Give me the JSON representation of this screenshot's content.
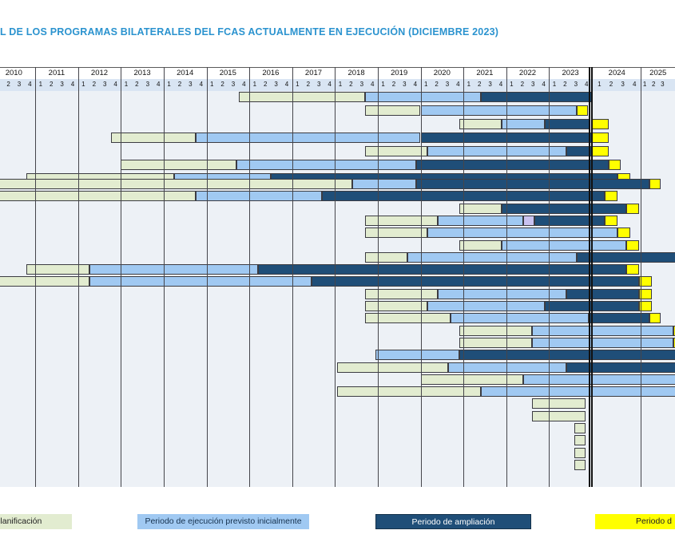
{
  "title": "L DE LOS PROGRAMAS BILATERALES DEL FCAS ACTUALMENTE EN EJECUCIÓN (DICIEMBRE 2023)",
  "title_color": "#2b93cf",
  "colors": {
    "plan": "#e2ecd0",
    "ejecucion": "#a0c9f2",
    "ampliacion": "#1f4e78",
    "extra": "#ffff00",
    "otros": "#c9c2f0",
    "header_quarters_bg": "#d9e5f3",
    "plot_bg": "#edf1f6",
    "grid_line": "#45454b",
    "today_line": "#101010"
  },
  "timeline": {
    "years": [
      {
        "label": "2010",
        "quarters": [
          "1",
          "2",
          "3",
          "4"
        ]
      },
      {
        "label": "2011",
        "quarters": [
          "1",
          "2",
          "3",
          "4"
        ]
      },
      {
        "label": "2012",
        "quarters": [
          "1",
          "2",
          "3",
          "4"
        ]
      },
      {
        "label": "2013",
        "quarters": [
          "1",
          "2",
          "3",
          "4"
        ]
      },
      {
        "label": "2014",
        "quarters": [
          "1",
          "2",
          "3",
          "4"
        ]
      },
      {
        "label": "2015",
        "quarters": [
          "1",
          "2",
          "3",
          "4"
        ]
      },
      {
        "label": "2016",
        "quarters": [
          "1",
          "2",
          "3",
          "4"
        ]
      },
      {
        "label": "2017",
        "quarters": [
          "1",
          "2",
          "3",
          "4"
        ]
      },
      {
        "label": "2018",
        "quarters": [
          "1",
          "2",
          "3",
          "4"
        ]
      },
      {
        "label": "2019",
        "quarters": [
          "1",
          "2",
          "3",
          "4"
        ]
      },
      {
        "label": "2020",
        "quarters": [
          "1",
          "2",
          "3",
          "4"
        ]
      },
      {
        "label": "2021",
        "quarters": [
          "1",
          "2",
          "3",
          "4"
        ]
      },
      {
        "label": "2022",
        "quarters": [
          "1",
          "2",
          "3",
          "4"
        ]
      },
      {
        "label": "2023",
        "quarters": [
          "1",
          "2",
          "3",
          "4"
        ]
      },
      {
        "label": "2024",
        "quarters": [
          "1",
          "2",
          "3",
          "4"
        ]
      },
      {
        "label": "2025",
        "quarters": [
          "1",
          "2",
          "3"
        ]
      }
    ],
    "today_marker": "end of 2023 Q4"
  },
  "legend": [
    {
      "key": "plan",
      "label": "n y planificación",
      "text_color": "#222222"
    },
    {
      "key": "ejecucion",
      "label": "Periodo de ejecución previsto inicialmente",
      "text_color": "#16324f"
    },
    {
      "key": "ampliacion",
      "label": "Periodo de ampliación",
      "text_color": "#ffffff"
    },
    {
      "key": "extra",
      "label": "Periodo d",
      "text_color": "#222222"
    }
  ],
  "chart_data": {
    "type": "gantt",
    "x_axis": {
      "unit": "decimal-year",
      "visible_start": 2010.18,
      "visible_end": 2025.94,
      "grid": "vertical year lines"
    },
    "segment_types": {
      "plan": "Periodo de formulación y planificación (verde)",
      "ejecucion": "Periodo de ejecución previsto inicialmente (azul claro)",
      "ampliacion": "Periodo de ampliación (azul oscuro)",
      "extra": "Periodo de prórroga (amarillo)",
      "otros": "Periodo especial (lavanda)"
    },
    "rows": [
      {
        "segments": [
          {
            "type": "plan",
            "start": 2015.75,
            "end": 2018.7
          },
          {
            "type": "ejecucion",
            "start": 2018.7,
            "end": 2021.4
          },
          {
            "type": "ampliacion",
            "start": 2021.4,
            "end": 2024.0
          }
        ]
      },
      {
        "segments": [
          {
            "type": "plan",
            "start": 2018.7,
            "end": 2020.0
          },
          {
            "type": "ejecucion",
            "start": 2020.0,
            "end": 2023.65
          },
          {
            "type": "extra",
            "start": 2023.65,
            "end": 2023.9
          }
        ]
      },
      {
        "segments": [
          {
            "type": "plan",
            "start": 2020.9,
            "end": 2021.9
          },
          {
            "type": "ejecucion",
            "start": 2021.9,
            "end": 2022.9
          },
          {
            "type": "ampliacion",
            "start": 2022.9,
            "end": 2023.95
          },
          {
            "type": "extra",
            "start": 2024.0,
            "end": 2024.4
          }
        ]
      },
      {
        "segments": [
          {
            "type": "plan",
            "start": 2012.77,
            "end": 2014.75
          },
          {
            "type": "ejecucion",
            "start": 2014.75,
            "end": 2020.0
          },
          {
            "type": "ampliacion",
            "start": 2020.0,
            "end": 2024.0
          },
          {
            "type": "extra",
            "start": 2024.0,
            "end": 2024.4
          }
        ]
      },
      {
        "segments": [
          {
            "type": "plan",
            "start": 2018.7,
            "end": 2020.15
          },
          {
            "type": "ejecucion",
            "start": 2020.15,
            "end": 2023.4
          },
          {
            "type": "ampliacion",
            "start": 2023.4,
            "end": 2024.0
          },
          {
            "type": "extra",
            "start": 2024.0,
            "end": 2024.4
          }
        ]
      },
      {
        "segments": [
          {
            "type": "plan",
            "start": 2013.0,
            "end": 2015.7
          },
          {
            "type": "ejecucion",
            "start": 2015.7,
            "end": 2019.9
          },
          {
            "type": "ampliacion",
            "start": 2019.9,
            "end": 2024.4
          },
          {
            "type": "extra",
            "start": 2024.4,
            "end": 2024.67
          }
        ]
      },
      {
        "segments": [
          {
            "type": "plan",
            "start": 2010.8,
            "end": 2014.25
          },
          {
            "type": "ejecucion",
            "start": 2014.25,
            "end": 2016.5
          },
          {
            "type": "ampliacion",
            "start": 2016.5,
            "end": 2024.6
          },
          {
            "type": "extra",
            "start": 2024.6,
            "end": 2024.9
          }
        ]
      },
      {
        "segments": [
          {
            "type": "plan",
            "start": 2009.8,
            "end": 2018.4
          },
          {
            "type": "ejecucion",
            "start": 2018.4,
            "end": 2019.9
          },
          {
            "type": "ampliacion",
            "start": 2019.9,
            "end": 2025.34
          },
          {
            "type": "extra",
            "start": 2025.34,
            "end": 2025.6
          }
        ]
      },
      {
        "segments": [
          {
            "type": "plan",
            "start": 2009.8,
            "end": 2014.75
          },
          {
            "type": "ejecucion",
            "start": 2014.75,
            "end": 2017.7
          },
          {
            "type": "ampliacion",
            "start": 2017.7,
            "end": 2024.3
          },
          {
            "type": "extra",
            "start": 2024.3,
            "end": 2024.6
          }
        ]
      },
      {
        "segments": [
          {
            "type": "plan",
            "start": 2020.9,
            "end": 2021.9
          },
          {
            "type": "ampliacion",
            "start": 2021.9,
            "end": 2024.8
          },
          {
            "type": "extra",
            "start": 2024.8,
            "end": 2025.1
          }
        ]
      },
      {
        "segments": [
          {
            "type": "plan",
            "start": 2018.7,
            "end": 2020.4
          },
          {
            "type": "ejecucion",
            "start": 2020.4,
            "end": 2022.4
          },
          {
            "type": "otros",
            "start": 2022.4,
            "end": 2022.65
          },
          {
            "type": "ampliacion",
            "start": 2022.65,
            "end": 2024.3
          },
          {
            "type": "extra",
            "start": 2024.3,
            "end": 2024.6
          }
        ]
      },
      {
        "segments": [
          {
            "type": "plan",
            "start": 2018.7,
            "end": 2020.15
          },
          {
            "type": "ejecucion",
            "start": 2020.15,
            "end": 2024.6
          },
          {
            "type": "extra",
            "start": 2024.6,
            "end": 2024.9
          }
        ]
      },
      {
        "segments": [
          {
            "type": "plan",
            "start": 2020.9,
            "end": 2021.9
          },
          {
            "type": "ejecucion",
            "start": 2021.9,
            "end": 2024.8
          },
          {
            "type": "extra",
            "start": 2024.8,
            "end": 2025.1
          }
        ]
      },
      {
        "segments": [
          {
            "type": "plan",
            "start": 2018.7,
            "end": 2019.7
          },
          {
            "type": "ejecucion",
            "start": 2019.7,
            "end": 2023.65
          },
          {
            "type": "ampliacion",
            "start": 2023.65,
            "end": 2026.1
          }
        ]
      },
      {
        "segments": [
          {
            "type": "plan",
            "start": 2010.8,
            "end": 2012.27
          },
          {
            "type": "ejecucion",
            "start": 2012.27,
            "end": 2016.2
          },
          {
            "type": "ampliacion",
            "start": 2016.2,
            "end": 2024.8
          },
          {
            "type": "extra",
            "start": 2024.8,
            "end": 2025.1
          }
        ]
      },
      {
        "segments": [
          {
            "type": "plan",
            "start": 2009.8,
            "end": 2012.27
          },
          {
            "type": "ejecucion",
            "start": 2012.27,
            "end": 2017.45
          },
          {
            "type": "ampliacion",
            "start": 2017.45,
            "end": 2025.1
          },
          {
            "type": "extra",
            "start": 2025.1,
            "end": 2025.4
          }
        ]
      },
      {
        "segments": [
          {
            "type": "plan",
            "start": 2018.7,
            "end": 2020.4
          },
          {
            "type": "ejecucion",
            "start": 2020.4,
            "end": 2023.4
          },
          {
            "type": "ampliacion",
            "start": 2023.4,
            "end": 2025.1
          },
          {
            "type": "extra",
            "start": 2025.1,
            "end": 2025.4
          }
        ]
      },
      {
        "segments": [
          {
            "type": "plan",
            "start": 2018.7,
            "end": 2020.15
          },
          {
            "type": "ejecucion",
            "start": 2020.15,
            "end": 2022.9
          },
          {
            "type": "ampliacion",
            "start": 2022.9,
            "end": 2025.1
          },
          {
            "type": "extra",
            "start": 2025.1,
            "end": 2025.4
          }
        ]
      },
      {
        "segments": [
          {
            "type": "plan",
            "start": 2018.7,
            "end": 2020.7
          },
          {
            "type": "ejecucion",
            "start": 2020.7,
            "end": 2023.93
          },
          {
            "type": "ampliacion",
            "start": 2023.93,
            "end": 2025.34
          },
          {
            "type": "extra",
            "start": 2025.34,
            "end": 2025.6
          }
        ]
      },
      {
        "segments": [
          {
            "type": "plan",
            "start": 2020.9,
            "end": 2022.6
          },
          {
            "type": "ejecucion",
            "start": 2022.6,
            "end": 2025.9
          },
          {
            "type": "extra",
            "start": 2025.9,
            "end": 2026.1
          }
        ]
      },
      {
        "segments": [
          {
            "type": "plan",
            "start": 2020.9,
            "end": 2022.6
          },
          {
            "type": "ejecucion",
            "start": 2022.6,
            "end": 2025.9
          },
          {
            "type": "extra",
            "start": 2025.9,
            "end": 2026.1
          }
        ]
      },
      {
        "segments": [
          {
            "type": "ejecucion",
            "start": 2018.95,
            "end": 2020.9
          },
          {
            "type": "ampliacion",
            "start": 2020.9,
            "end": 2026.1
          }
        ]
      },
      {
        "segments": [
          {
            "type": "plan",
            "start": 2018.05,
            "end": 2020.65
          },
          {
            "type": "ejecucion",
            "start": 2020.65,
            "end": 2023.4
          },
          {
            "type": "ampliacion",
            "start": 2023.4,
            "end": 2026.1
          }
        ]
      },
      {
        "segments": [
          {
            "type": "plan",
            "start": 2020.0,
            "end": 2022.4
          },
          {
            "type": "ejecucion",
            "start": 2022.4,
            "end": 2026.1
          }
        ]
      },
      {
        "segments": [
          {
            "type": "plan",
            "start": 2018.05,
            "end": 2021.4
          },
          {
            "type": "ejecucion",
            "start": 2021.4,
            "end": 2026.1
          }
        ]
      },
      {
        "segments": [
          {
            "type": "plan",
            "start": 2022.6,
            "end": 2023.85
          }
        ]
      },
      {
        "segments": [
          {
            "type": "plan",
            "start": 2022.6,
            "end": 2023.85
          }
        ]
      },
      {
        "segments": [
          {
            "type": "plan",
            "start": 2023.6,
            "end": 2023.85
          }
        ]
      },
      {
        "segments": [
          {
            "type": "plan",
            "start": 2023.6,
            "end": 2023.85
          }
        ]
      },
      {
        "segments": [
          {
            "type": "plan",
            "start": 2023.6,
            "end": 2023.85
          }
        ]
      },
      {
        "segments": [
          {
            "type": "plan",
            "start": 2023.6,
            "end": 2023.85
          }
        ]
      }
    ]
  }
}
